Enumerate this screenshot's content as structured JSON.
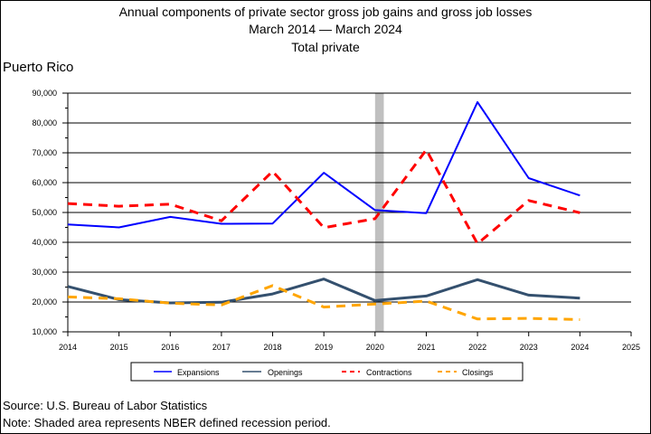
{
  "title_lines": [
    "Annual components of private sector gross job gains and gross job losses",
    "March 2014 — March 2024",
    "Total private"
  ],
  "area_label": "Puerto Rico",
  "footer": {
    "source": "Source: U.S. Bureau of Labor Statistics",
    "note": "Note: Shaded area represents NBER defined recession period."
  },
  "chart_data": {
    "type": "line",
    "title": "Annual components of private sector gross job gains and gross job losses",
    "subtitle": "March 2014 — March 2024 / Total private",
    "xlabel": "",
    "ylabel": "",
    "xlim": [
      2014,
      2025
    ],
    "ylim": [
      10000,
      90000
    ],
    "x_ticks": [
      2014,
      2015,
      2016,
      2017,
      2018,
      2019,
      2020,
      2021,
      2022,
      2023,
      2024,
      2025
    ],
    "x_tick_labels": [
      "2014",
      "2015",
      "2016",
      "2017",
      "2018",
      "2019",
      "2020",
      "2021",
      "2022",
      "2023",
      "2024",
      "2025"
    ],
    "y_ticks": [
      10000,
      20000,
      30000,
      40000,
      50000,
      60000,
      70000,
      80000,
      90000
    ],
    "y_tick_labels": [
      "10,000",
      "20,000",
      "30,000",
      "40,000",
      "50,000",
      "60,000",
      "70,000",
      "80,000",
      "90,000"
    ],
    "grid": "horizontal",
    "legend_position": "bottom",
    "recession": {
      "start": 2020.0,
      "end": 2020.17,
      "color": "#c0c0c0"
    },
    "x": [
      2014,
      2015,
      2016,
      2017,
      2018,
      2019,
      2020,
      2021,
      2022,
      2023,
      2024
    ],
    "series": [
      {
        "name": "Expansions",
        "color": "#0000ff",
        "dash": "solid",
        "values": [
          46000,
          45000,
          48500,
          46200,
          46300,
          63300,
          50800,
          49800,
          87000,
          61500,
          55700
        ]
      },
      {
        "name": "Openings",
        "color": "#34506e",
        "dash": "solid",
        "values": [
          25200,
          20800,
          19700,
          19900,
          22700,
          27700,
          20500,
          22000,
          27500,
          22300,
          21300
        ]
      },
      {
        "name": "Contractions",
        "color": "#ff0000",
        "dash": "dashed",
        "values": [
          53000,
          52100,
          52800,
          47200,
          63800,
          44900,
          47900,
          71000,
          39500,
          54000,
          49900
        ]
      },
      {
        "name": "Closings",
        "color": "#ffa500",
        "dash": "dashed",
        "values": [
          21700,
          21100,
          19600,
          19000,
          25500,
          18300,
          19300,
          20300,
          14300,
          14500,
          14100
        ]
      }
    ]
  }
}
